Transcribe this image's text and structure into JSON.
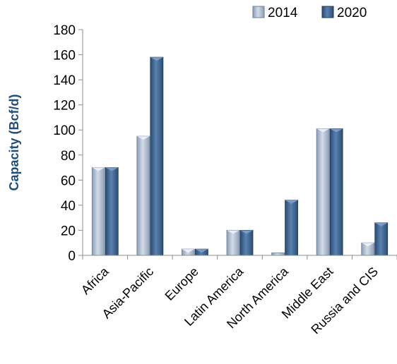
{
  "chart_data": {
    "type": "bar",
    "categories": [
      "Africa",
      "Asia-Pacific",
      "Europe",
      "Latin America",
      "North America",
      "Middle East",
      "Russia and CIS"
    ],
    "series": [
      {
        "name": "2014",
        "values": [
          70,
          95,
          5,
          20,
          2,
          101,
          10
        ],
        "color": "#A7B7CC"
      },
      {
        "name": "2020",
        "values": [
          70,
          158,
          5,
          20,
          44,
          101,
          26
        ],
        "color": "#3F6591"
      }
    ],
    "ylabel": "Capacity (Bcf/d)",
    "xlabel": "",
    "title": "",
    "ylim": [
      0,
      180
    ],
    "yticks": [
      0,
      20,
      40,
      60,
      80,
      100,
      120,
      140,
      160,
      180
    ],
    "legend_position": "top-right",
    "grid": false
  }
}
